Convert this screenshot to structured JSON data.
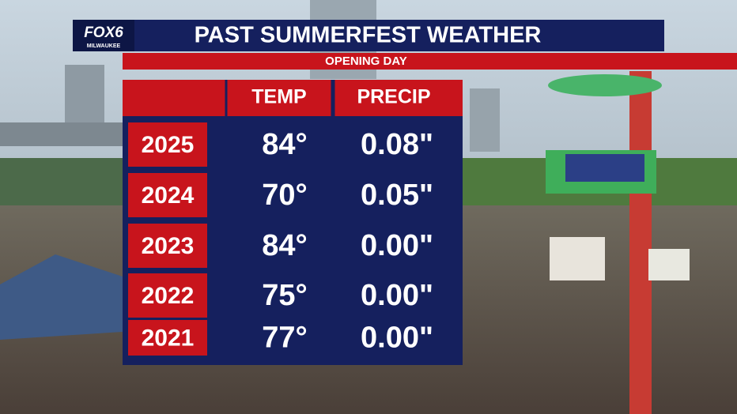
{
  "header": {
    "logo": "FOX6",
    "logo_sub": "MILWAUKEE",
    "title": "PAST SUMMERFEST WEATHER",
    "subtitle": "OPENING DAY"
  },
  "table": {
    "columns": [
      "TEMP",
      "PRECIP"
    ],
    "rows": [
      [
        "2025",
        "84°",
        "0.08\""
      ],
      [
        "2024",
        "70°",
        "0.05\""
      ],
      [
        "2023",
        "84°",
        "0.00\""
      ],
      [
        "2022",
        "75°",
        "0.00\""
      ],
      [
        "2021",
        "77°",
        "0.00\""
      ]
    ]
  }
}
